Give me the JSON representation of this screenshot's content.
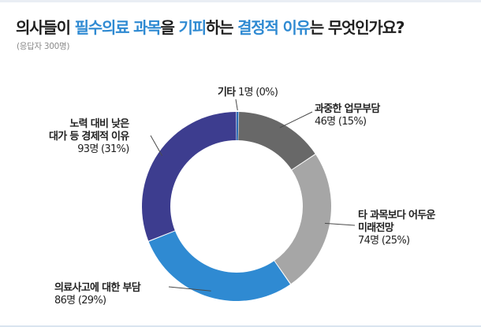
{
  "title": {
    "parts": [
      {
        "text": "의사들이 ",
        "style": "dk"
      },
      {
        "text": "필수의료 과목",
        "style": "hl"
      },
      {
        "text": "을 ",
        "style": "dk"
      },
      {
        "text": "기피",
        "style": "hl"
      },
      {
        "text": "하는 ",
        "style": "dk"
      },
      {
        "text": "결정적 이유",
        "style": "hl"
      },
      {
        "text": "는 무엇인가요?",
        "style": "dk"
      }
    ]
  },
  "subtitle": "(응답자 300명)",
  "colors": {
    "accent": "#2f8ad2",
    "ring_bg": "#ffffff"
  },
  "chart_data": {
    "type": "pie",
    "variant": "donut",
    "title": "의사들이 필수의료 과목을 기피하는 결정적 이유는 무엇인가요?",
    "subtitle": "(응답자 300명)",
    "total": 300,
    "unit": "명",
    "slices": [
      {
        "name": "기타",
        "label_lines": [
          "기타"
        ],
        "value": 1,
        "value_text": "1명 (0%)",
        "percent": 0,
        "color": "#2b6cb5"
      },
      {
        "name": "과중한 업무부담",
        "label_lines": [
          "과중한 업무부담"
        ],
        "value": 46,
        "value_text": "46명 (15%)",
        "percent": 15,
        "color": "#686868"
      },
      {
        "name": "타 과목보다 어두운 미래전망",
        "label_lines": [
          "타 과목보다 어두운",
          "미래전망"
        ],
        "value": 74,
        "value_text": "74명 (25%)",
        "percent": 25,
        "color": "#a6a6a6"
      },
      {
        "name": "의료사고에 대한 부담",
        "label_lines": [
          "의료사고에 대한 부담"
        ],
        "value": 86,
        "value_text": "86명 (29%)",
        "percent": 29,
        "color": "#2f8ad2"
      },
      {
        "name": "노력 대비 낮은 대가 등 경제적 이유",
        "label_lines": [
          "노력 대비 낮은",
          "대가 등 경제적 이유"
        ],
        "value": 93,
        "value_text": "93명 (31%)",
        "percent": 31,
        "color": "#3d3d8f"
      }
    ],
    "start_angle_deg": 0,
    "direction": "clockwise",
    "legend": "none"
  }
}
